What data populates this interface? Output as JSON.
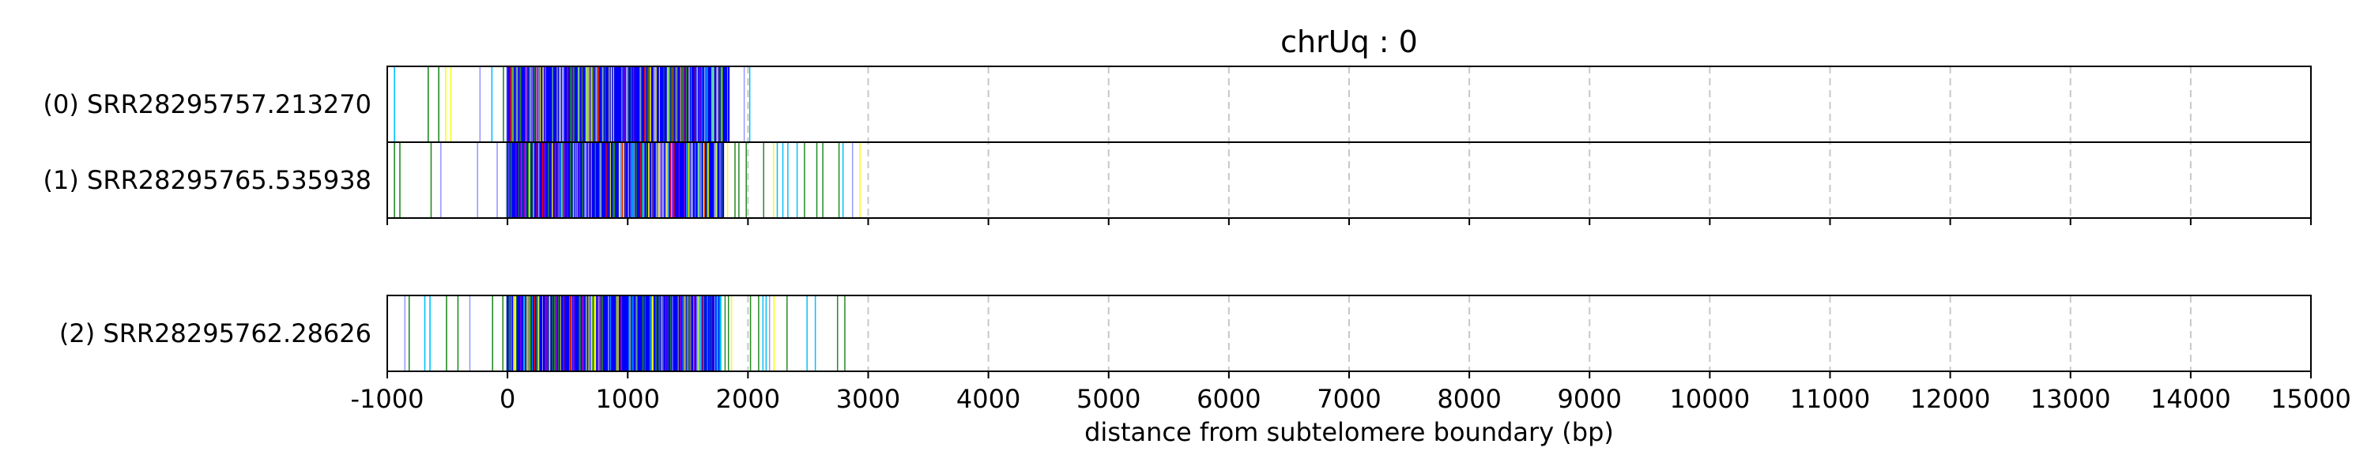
{
  "chart_data": {
    "type": "read-track",
    "title": "chrUq : 0",
    "xlabel": "distance from subtelomere boundary (bp)",
    "xlim": [
      -1000,
      15000
    ],
    "x_ticks": [
      -1000,
      0,
      1000,
      2000,
      3000,
      4000,
      5000,
      6000,
      7000,
      8000,
      9000,
      10000,
      11000,
      12000,
      13000,
      14000,
      15000
    ],
    "x_tick_labels": [
      "-1000",
      "0",
      "1000",
      "2000",
      "3000",
      "4000",
      "5000",
      "6000",
      "7000",
      "8000",
      "9000",
      "10000",
      "11000",
      "12000",
      "13000",
      "14000",
      "15000"
    ],
    "grid": "vertical dashed lines at each x tick",
    "panels": [
      {
        "reads": [
          {
            "label": "(0) SRR28295757.213270",
            "read_end": 2100,
            "dense_region": [
              0,
              1840
            ],
            "sparse_region": [
              -1000,
              0
            ],
            "tail_region": [
              1840,
              2100
            ]
          },
          {
            "label": "(1) SRR28295765.535938",
            "read_end": 3100,
            "dense_region": [
              0,
              1800
            ],
            "sparse_region": [
              -1000,
              0
            ],
            "tail_region": [
              1800,
              3100
            ]
          }
        ]
      },
      {
        "reads": [
          {
            "label": "(2) SRR28295762.28626",
            "read_end": 3000,
            "dense_region": [
              0,
              1780
            ],
            "sparse_region": [
              -1000,
              0
            ],
            "tail_region": [
              1780,
              3000
            ]
          }
        ]
      }
    ],
    "mark_colors": {
      "primary": "#0000ff",
      "light": "#9999ff",
      "secondary": "#228b22",
      "tertiary": "#ffff00",
      "quaternary": "#ff0000",
      "quinary": "#9400d3",
      "cyan": "#00bfff",
      "grid": "#c8c8c8"
    }
  }
}
